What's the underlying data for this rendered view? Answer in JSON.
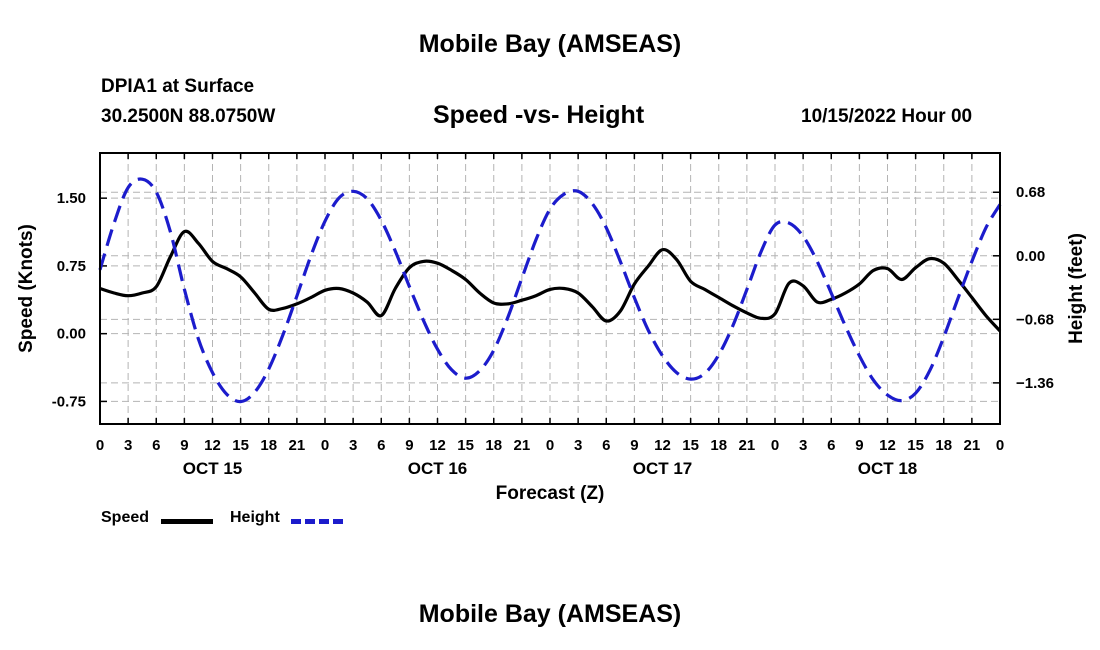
{
  "header": {
    "title": "Mobile Bay (AMSEAS)",
    "station": "DPIA1 at Surface",
    "coords": "30.2500N  88.0750W",
    "subtitle": "Speed -vs- Height",
    "timestamp": "10/15/2022 Hour 00"
  },
  "footer": {
    "title": "Mobile Bay (AMSEAS)"
  },
  "legend": {
    "speed_label": "Speed",
    "height_label": "Height"
  },
  "colors": {
    "speed": "#000000",
    "height": "#1c1ccc",
    "grid": "#b4b4b4"
  },
  "chart_data": {
    "type": "line",
    "title": "Speed -vs- Height",
    "xlabel": "Forecast (Z)",
    "ylabel_left": "Speed (Knots)",
    "ylabel_right": "Height (feet)",
    "xlim": [
      0,
      96
    ],
    "ylim_left": [
      -1.0,
      2.0
    ],
    "ylim_right": [
      -1.8,
      1.1
    ],
    "x_ticks": [
      0,
      3,
      6,
      9,
      12,
      15,
      18,
      21,
      24,
      27,
      30,
      33,
      36,
      39,
      42,
      45,
      48,
      51,
      54,
      57,
      60,
      63,
      66,
      69,
      72,
      75,
      78,
      81,
      84,
      87,
      90,
      93,
      96
    ],
    "x_tick_labels": [
      "0",
      "3",
      "6",
      "9",
      "12",
      "15",
      "18",
      "21",
      "0",
      "3",
      "6",
      "9",
      "12",
      "15",
      "18",
      "21",
      "0",
      "3",
      "6",
      "9",
      "12",
      "15",
      "18",
      "21",
      "0",
      "3",
      "6",
      "9",
      "12",
      "15",
      "18",
      "21",
      "0"
    ],
    "date_labels": [
      {
        "x": 12,
        "label": "OCT 15"
      },
      {
        "x": 36,
        "label": "OCT 16"
      },
      {
        "x": 60,
        "label": "OCT 17"
      },
      {
        "x": 84,
        "label": "OCT 18"
      }
    ],
    "left_ticks": [
      1.5,
      0.75,
      0.0,
      -0.75
    ],
    "left_tick_labels": [
      "1.50",
      "0.75",
      "0.00",
      "-0.75"
    ],
    "right_ticks": [
      0.68,
      0.0,
      -0.68,
      -1.36
    ],
    "right_tick_labels": [
      "0.68",
      "0.00",
      "−0.68",
      "−1.36"
    ],
    "grid": true,
    "series": [
      {
        "name": "Speed",
        "axis": "left",
        "style": "solid",
        "x": [
          0,
          1.5,
          3,
          4.5,
          6,
          7.5,
          9,
          10.5,
          12,
          13.5,
          15,
          16.5,
          18,
          19.5,
          21,
          22.5,
          24,
          25.5,
          27,
          28.5,
          30,
          31.5,
          33,
          34.5,
          36,
          37.5,
          39,
          40.5,
          42,
          43.5,
          45,
          46.5,
          48,
          49.5,
          51,
          52.5,
          54,
          55.5,
          57,
          58.5,
          60,
          61.5,
          63,
          64.5,
          66,
          67.5,
          69,
          70.5,
          72,
          73.5,
          75,
          76.5,
          78,
          79.5,
          81,
          82.5,
          84,
          85.5,
          87,
          88.5,
          90,
          91.5,
          93,
          94.5,
          96
        ],
        "y": [
          0.5,
          0.45,
          0.42,
          0.45,
          0.52,
          0.85,
          1.13,
          1.0,
          0.8,
          0.72,
          0.63,
          0.45,
          0.27,
          0.28,
          0.33,
          0.4,
          0.48,
          0.5,
          0.45,
          0.35,
          0.2,
          0.5,
          0.73,
          0.8,
          0.78,
          0.7,
          0.6,
          0.45,
          0.34,
          0.33,
          0.37,
          0.42,
          0.49,
          0.5,
          0.45,
          0.3,
          0.14,
          0.25,
          0.55,
          0.75,
          0.93,
          0.82,
          0.58,
          0.49,
          0.4,
          0.31,
          0.23,
          0.17,
          0.22,
          0.56,
          0.53,
          0.35,
          0.38,
          0.45,
          0.55,
          0.7,
          0.72,
          0.6,
          0.73,
          0.83,
          0.78,
          0.6,
          0.4,
          0.2,
          0.03
        ]
      },
      {
        "name": "Height",
        "axis": "right",
        "style": "dashed",
        "x": [
          0,
          1.5,
          3,
          4.5,
          6,
          7.5,
          9,
          10.5,
          12,
          13.5,
          15,
          16.5,
          18,
          19.5,
          21,
          22.5,
          24,
          25.5,
          27,
          28.5,
          30,
          31.5,
          33,
          34.5,
          36,
          37.5,
          39,
          40.5,
          42,
          43.5,
          45,
          46.5,
          48,
          49.5,
          51,
          52.5,
          54,
          55.5,
          57,
          58.5,
          60,
          61.5,
          63,
          64.5,
          66,
          67.5,
          69,
          70.5,
          72,
          73.5,
          75,
          76.5,
          78,
          79.5,
          81,
          82.5,
          84,
          85.5,
          87,
          88.5,
          90,
          91.5,
          93,
          94.5,
          96
        ],
        "y": [
          -0.15,
          0.35,
          0.73,
          0.82,
          0.68,
          0.26,
          -0.36,
          -0.89,
          -1.25,
          -1.48,
          -1.56,
          -1.46,
          -1.21,
          -0.85,
          -0.43,
          0.0,
          0.37,
          0.62,
          0.69,
          0.61,
          0.38,
          0.05,
          -0.33,
          -0.69,
          -1.0,
          -1.22,
          -1.31,
          -1.23,
          -1.01,
          -0.66,
          -0.24,
          0.17,
          0.5,
          0.66,
          0.69,
          0.56,
          0.3,
          -0.06,
          -0.45,
          -0.8,
          -1.07,
          -1.25,
          -1.32,
          -1.26,
          -1.06,
          -0.75,
          -0.36,
          0.04,
          0.33,
          0.35,
          0.21,
          -0.06,
          -0.4,
          -0.75,
          -1.07,
          -1.33,
          -1.49,
          -1.55,
          -1.47,
          -1.23,
          -0.87,
          -0.46,
          -0.06,
          0.3,
          0.55
        ]
      }
    ]
  }
}
